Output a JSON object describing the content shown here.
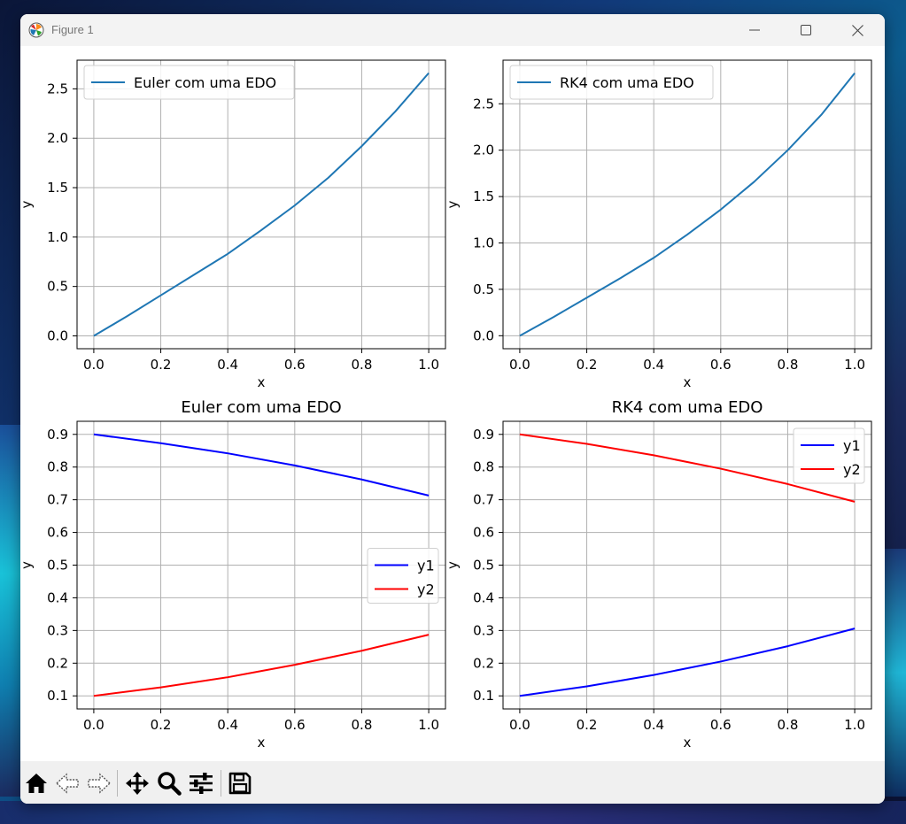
{
  "window": {
    "title": "Figure 1",
    "controls": [
      "minimize",
      "maximize",
      "close"
    ]
  },
  "toolbar": {
    "items": [
      "home-icon",
      "back-icon",
      "forward-icon",
      "pan-icon",
      "zoom-icon",
      "configure-subplots-icon",
      "save-icon"
    ]
  },
  "colors": {
    "tab_blue": "#1f77b4",
    "blue": "#0000ff",
    "red": "#ff0000",
    "grid": "#b0b0b0"
  },
  "chart_data": [
    {
      "type": "line",
      "title": "",
      "xlabel": "x",
      "ylabel": "y",
      "xlim": [
        -0.05,
        1.05
      ],
      "ylim": [
        -0.13,
        2.79
      ],
      "xticks": [
        0.0,
        0.2,
        0.4,
        0.6,
        0.8,
        1.0
      ],
      "xtick_labels": [
        "0.0",
        "0.2",
        "0.4",
        "0.6",
        "0.8",
        "1.0"
      ],
      "yticks": [
        0.0,
        0.5,
        1.0,
        1.5,
        2.0,
        2.5
      ],
      "ytick_labels": [
        "0.0",
        "0.5",
        "1.0",
        "1.5",
        "2.0",
        "2.5"
      ],
      "grid": true,
      "legend": "upper-left",
      "x": [
        0.0,
        0.1,
        0.2,
        0.3,
        0.4,
        0.5,
        0.6,
        0.7,
        0.8,
        0.9,
        1.0
      ],
      "series": [
        {
          "name": "Euler com uma EDO",
          "color": "#1f77b4",
          "values": [
            0.0,
            0.2,
            0.41,
            0.62,
            0.83,
            1.07,
            1.32,
            1.6,
            1.92,
            2.27,
            2.66
          ]
        }
      ]
    },
    {
      "type": "line",
      "title": "",
      "xlabel": "x",
      "ylabel": "y",
      "xlim": [
        -0.05,
        1.05
      ],
      "ylim": [
        -0.14,
        2.97
      ],
      "xticks": [
        0.0,
        0.2,
        0.4,
        0.6,
        0.8,
        1.0
      ],
      "xtick_labels": [
        "0.0",
        "0.2",
        "0.4",
        "0.6",
        "0.8",
        "1.0"
      ],
      "yticks": [
        0.0,
        0.5,
        1.0,
        1.5,
        2.0,
        2.5
      ],
      "ytick_labels": [
        "0.0",
        "0.5",
        "1.0",
        "1.5",
        "2.0",
        "2.5"
      ],
      "grid": true,
      "legend": "upper-left",
      "x": [
        0.0,
        0.1,
        0.2,
        0.3,
        0.4,
        0.5,
        0.6,
        0.7,
        0.8,
        0.9,
        1.0
      ],
      "series": [
        {
          "name": "RK4 com uma EDO",
          "color": "#1f77b4",
          "values": [
            0.0,
            0.2,
            0.41,
            0.62,
            0.84,
            1.09,
            1.36,
            1.66,
            2.0,
            2.38,
            2.83
          ]
        }
      ]
    },
    {
      "type": "line",
      "title": "Euler com uma EDO",
      "xlabel": "x",
      "ylabel": "y",
      "xlim": [
        -0.05,
        1.05
      ],
      "ylim": [
        0.06,
        0.94
      ],
      "xticks": [
        0.0,
        0.2,
        0.4,
        0.6,
        0.8,
        1.0
      ],
      "xtick_labels": [
        "0.0",
        "0.2",
        "0.4",
        "0.6",
        "0.8",
        "1.0"
      ],
      "yticks": [
        0.1,
        0.2,
        0.3,
        0.4,
        0.5,
        0.6,
        0.7,
        0.8,
        0.9
      ],
      "ytick_labels": [
        "0.1",
        "0.2",
        "0.3",
        "0.4",
        "0.5",
        "0.6",
        "0.7",
        "0.8",
        "0.9"
      ],
      "grid": true,
      "legend": "center-right",
      "x": [
        0.0,
        0.2,
        0.4,
        0.6,
        0.8,
        1.0
      ],
      "series": [
        {
          "name": "y1",
          "color": "#0000ff",
          "values": [
            0.9,
            0.873,
            0.842,
            0.805,
            0.762,
            0.713
          ]
        },
        {
          "name": "y2",
          "color": "#ff0000",
          "values": [
            0.1,
            0.126,
            0.157,
            0.195,
            0.238,
            0.287
          ]
        }
      ]
    },
    {
      "type": "line",
      "title": "RK4 com uma EDO",
      "xlabel": "x",
      "ylabel": "y",
      "xlim": [
        -0.05,
        1.05
      ],
      "ylim": [
        0.06,
        0.94
      ],
      "xticks": [
        0.0,
        0.2,
        0.4,
        0.6,
        0.8,
        1.0
      ],
      "xtick_labels": [
        "0.0",
        "0.2",
        "0.4",
        "0.6",
        "0.8",
        "1.0"
      ],
      "yticks": [
        0.1,
        0.2,
        0.3,
        0.4,
        0.5,
        0.6,
        0.7,
        0.8,
        0.9
      ],
      "ytick_labels": [
        "0.1",
        "0.2",
        "0.3",
        "0.4",
        "0.5",
        "0.6",
        "0.7",
        "0.8",
        "0.9"
      ],
      "grid": true,
      "legend": "upper-right",
      "x": [
        0.0,
        0.2,
        0.4,
        0.6,
        0.8,
        1.0
      ],
      "series": [
        {
          "name": "y1",
          "color": "#0000ff",
          "values": [
            0.1,
            0.129,
            0.164,
            0.205,
            0.252,
            0.306
          ]
        },
        {
          "name": "y2",
          "color": "#ff0000",
          "values": [
            0.9,
            0.871,
            0.836,
            0.795,
            0.748,
            0.694
          ]
        }
      ]
    }
  ]
}
